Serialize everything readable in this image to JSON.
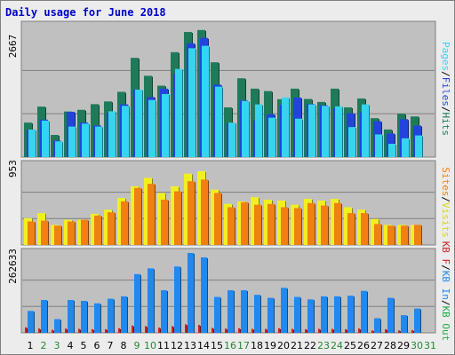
{
  "title": "Daily usage for June 2018",
  "colors": {
    "hits": "#1f7a5a",
    "files": "#2244dd",
    "pages": "#33d6ee",
    "visits": "#f0f020",
    "sites": "#f08010",
    "kb_in": "#2288ee",
    "kb_f": "#cc2222",
    "weekday_label": "#000000",
    "weekend_label": "#228833",
    "panel_bg": "#c0c0c0",
    "grid": "#808080"
  },
  "chart_data": [
    {
      "type": "bar",
      "xlabel": "",
      "ylabel": "",
      "categories": [
        "1",
        "2",
        "3",
        "4",
        "5",
        "6",
        "7",
        "8",
        "9",
        "10",
        "11",
        "12",
        "13",
        "14",
        "15",
        "16",
        "17",
        "18",
        "19",
        "20",
        "21",
        "22",
        "23",
        "24",
        "25",
        "26",
        "27",
        "28",
        "29",
        "30",
        "31"
      ],
      "weekend_days": [
        "2",
        "3",
        "9",
        "10",
        "16",
        "17",
        "23",
        "24",
        "30",
        "31"
      ],
      "ymax_label": "2667",
      "ylim": [
        0,
        2667
      ],
      "grid": true,
      "legend_position": "right (vertical)",
      "legend": {
        "text1": "Pages",
        "text2": "Files",
        "text3": "Hits",
        "sep": "/"
      },
      "series": [
        {
          "name": "Hits",
          "values": [
            700,
            1025,
            450,
            925,
            960,
            1075,
            1130,
            1325,
            2015,
            1650,
            1450,
            2130,
            2540,
            2580,
            1925,
            1010,
            1600,
            1390,
            1340,
            1175,
            1390,
            1180,
            1120,
            1390,
            1010,
            1190,
            790,
            560,
            880,
            825,
            0
          ]
        },
        {
          "name": "Files",
          "values": [
            560,
            760,
            330,
            920,
            700,
            640,
            900,
            1070,
            1370,
            1220,
            1390,
            1700,
            2310,
            2420,
            1470,
            690,
            1150,
            740,
            870,
            1060,
            1210,
            1080,
            1050,
            1000,
            890,
            910,
            730,
            480,
            770,
            640,
            0
          ]
        },
        {
          "name": "Pages",
          "values": [
            560,
            740,
            320,
            620,
            680,
            620,
            930,
            1040,
            1370,
            1160,
            1280,
            1790,
            2210,
            2260,
            1430,
            700,
            1140,
            1070,
            800,
            1210,
            780,
            1070,
            1040,
            1030,
            610,
            1070,
            460,
            270,
            380,
            440,
            0
          ]
        }
      ]
    },
    {
      "type": "bar",
      "xlabel": "",
      "ylabel": "",
      "categories": [
        "1",
        "2",
        "3",
        "4",
        "5",
        "6",
        "7",
        "8",
        "9",
        "10",
        "11",
        "12",
        "13",
        "14",
        "15",
        "16",
        "17",
        "18",
        "19",
        "20",
        "21",
        "22",
        "23",
        "24",
        "25",
        "26",
        "27",
        "28",
        "29",
        "30",
        "31"
      ],
      "ymax_label": "953",
      "ylim": [
        0,
        953
      ],
      "grid": true,
      "legend_position": "right (vertical)",
      "legend": {
        "text1": "Sites",
        "text2": "Visits",
        "sep": "/"
      },
      "series": [
        {
          "name": "Visits",
          "values": [
            320,
            380,
            240,
            300,
            300,
            370,
            420,
            560,
            700,
            800,
            620,
            700,
            850,
            880,
            660,
            490,
            520,
            570,
            540,
            530,
            480,
            550,
            530,
            550,
            450,
            420,
            310,
            240,
            240,
            240,
            0
          ]
        },
        {
          "name": "Sites",
          "values": [
            280,
            290,
            230,
            280,
            300,
            350,
            390,
            520,
            680,
            730,
            540,
            640,
            760,
            780,
            620,
            450,
            510,
            480,
            490,
            450,
            440,
            500,
            470,
            500,
            380,
            380,
            250,
            230,
            230,
            240,
            0
          ]
        }
      ]
    },
    {
      "type": "bar",
      "xlabel": "",
      "ylabel": "",
      "categories": [
        "1",
        "2",
        "3",
        "4",
        "5",
        "6",
        "7",
        "8",
        "9",
        "10",
        "11",
        "12",
        "13",
        "14",
        "15",
        "16",
        "17",
        "18",
        "19",
        "20",
        "21",
        "22",
        "23",
        "24",
        "25",
        "26",
        "27",
        "28",
        "29",
        "30",
        "31"
      ],
      "ymax_label": "262633",
      "ylim": [
        0,
        262633
      ],
      "grid": true,
      "legend_position": "right (vertical)",
      "legend": {
        "text1": "KB F",
        "text2": "KB In",
        "text3": "KB Out",
        "sep": "/"
      },
      "series": [
        {
          "name": "KB In",
          "values": [
            72000,
            108000,
            45000,
            108000,
            105000,
            97000,
            112000,
            120000,
            193000,
            212000,
            140000,
            218000,
            262633,
            248000,
            118000,
            140000,
            140000,
            125000,
            115000,
            148000,
            118000,
            110000,
            120000,
            120000,
            122000,
            138000,
            48000,
            115000,
            58000,
            80000,
            0
          ]
        },
        {
          "name": "KB F",
          "values": [
            18000,
            14000,
            10000,
            14000,
            13000,
            12000,
            12000,
            15000,
            24000,
            22000,
            17000,
            22000,
            28000,
            26000,
            16000,
            14000,
            15000,
            13000,
            13000,
            15000,
            13000,
            12000,
            13000,
            13000,
            12000,
            14000,
            8000,
            12000,
            8000,
            9000,
            0
          ]
        }
      ]
    }
  ]
}
